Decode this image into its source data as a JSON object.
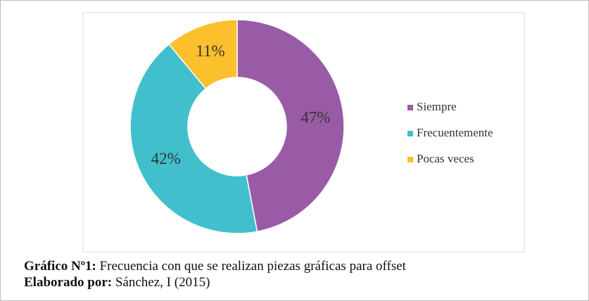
{
  "chart_data": {
    "type": "donut",
    "categories": [
      "Siempre",
      "Frecuentemente",
      "Pocas veces"
    ],
    "values": [
      47,
      42,
      11
    ],
    "value_labels": [
      "47%",
      "42%",
      "11%"
    ],
    "colors": [
      "#9a5ba6",
      "#42bfcd",
      "#fcbf2e"
    ],
    "legend": "right",
    "captions": [
      {
        "label": "Gráfico Nº1:",
        "text": "Frecuencia con que se realizan piezas gráficas para offset"
      },
      {
        "label": "Elaborado por:",
        "text": "Sánchez, I (2015)"
      }
    ]
  }
}
